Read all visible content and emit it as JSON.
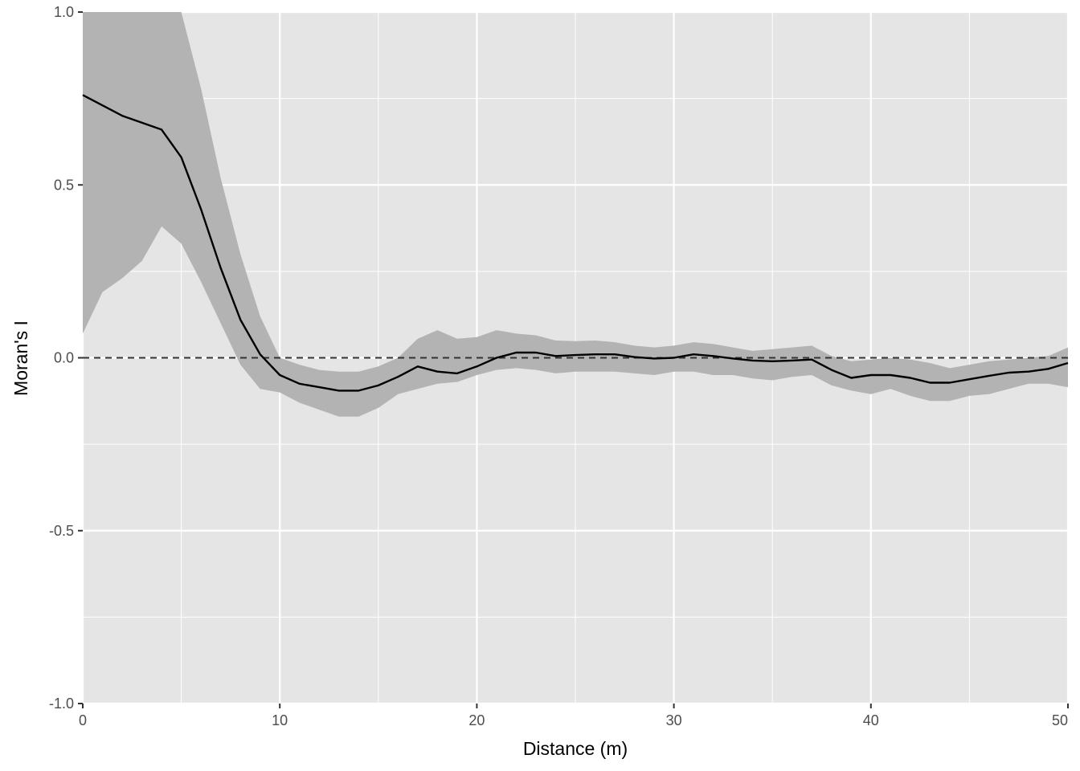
{
  "chart_data": {
    "type": "line",
    "xlabel": "Distance (m)",
    "ylabel": "Moran's I",
    "xlim": [
      0,
      50
    ],
    "ylim": [
      -1.0,
      1.0
    ],
    "x_ticks": [
      0,
      10,
      20,
      30,
      40,
      50
    ],
    "x_tick_labels": [
      "0",
      "10",
      "20",
      "30",
      "40",
      "50"
    ],
    "y_ticks": [
      -1.0,
      -0.5,
      0.0,
      0.5,
      1.0
    ],
    "y_tick_labels": [
      "-1.0",
      "-0.5",
      "0.0",
      "0.5",
      "1.0"
    ],
    "grid": true,
    "reference_line": {
      "y": 0.0,
      "style": "dashed"
    },
    "colors": {
      "panel_background": "#e5e5e5",
      "grid": "#ffffff",
      "band": "#b3b3b3",
      "line": "#000000"
    },
    "series": [
      {
        "x": [
          0,
          1,
          2,
          3,
          4,
          5,
          6,
          7,
          8,
          9,
          10,
          11,
          12,
          13,
          14,
          15,
          16,
          17,
          18,
          19,
          20,
          21,
          22,
          23,
          24,
          25,
          26,
          27,
          28,
          29,
          30,
          31,
          32,
          33,
          34,
          35,
          36,
          37,
          38,
          39,
          40,
          41,
          42,
          43,
          44,
          45,
          46,
          47,
          48,
          49,
          50
        ],
        "y": [
          0.76,
          0.73,
          0.7,
          0.68,
          0.66,
          0.58,
          0.43,
          0.26,
          0.11,
          0.01,
          -0.05,
          -0.075,
          -0.085,
          -0.095,
          -0.095,
          -0.08,
          -0.055,
          -0.025,
          -0.04,
          -0.045,
          -0.025,
          0.0,
          0.015,
          0.015,
          0.005,
          0.008,
          0.01,
          0.01,
          0.002,
          -0.002,
          0.0,
          0.01,
          0.005,
          -0.002,
          -0.008,
          -0.01,
          -0.008,
          -0.005,
          -0.035,
          -0.058,
          -0.05,
          -0.05,
          -0.058,
          -0.072,
          -0.072,
          -0.062,
          -0.052,
          -0.043,
          -0.04,
          -0.032,
          -0.015
        ],
        "lower": [
          0.07,
          0.19,
          0.23,
          0.28,
          0.38,
          0.33,
          0.22,
          0.1,
          -0.02,
          -0.09,
          -0.1,
          -0.13,
          -0.15,
          -0.17,
          -0.17,
          -0.145,
          -0.105,
          -0.09,
          -0.075,
          -0.07,
          -0.05,
          -0.035,
          -0.03,
          -0.035,
          -0.045,
          -0.04,
          -0.04,
          -0.04,
          -0.045,
          -0.05,
          -0.04,
          -0.04,
          -0.05,
          -0.05,
          -0.06,
          -0.065,
          -0.055,
          -0.05,
          -0.08,
          -0.095,
          -0.105,
          -0.09,
          -0.11,
          -0.125,
          -0.125,
          -0.11,
          -0.105,
          -0.09,
          -0.075,
          -0.075,
          -0.085
        ],
        "upper": [
          1.0,
          1.0,
          1.0,
          1.0,
          1.0,
          1.0,
          0.78,
          0.52,
          0.3,
          0.12,
          0.0,
          -0.02,
          -0.035,
          -0.04,
          -0.04,
          -0.025,
          0.0,
          0.055,
          0.08,
          0.055,
          0.06,
          0.08,
          0.07,
          0.065,
          0.05,
          0.048,
          0.05,
          0.045,
          0.035,
          0.03,
          0.035,
          0.045,
          0.04,
          0.03,
          0.02,
          0.025,
          0.03,
          0.035,
          0.005,
          -0.01,
          -0.005,
          0.0,
          -0.005,
          -0.015,
          -0.03,
          -0.02,
          -0.01,
          -0.005,
          0.0,
          0.005,
          0.03
        ]
      }
    ]
  }
}
